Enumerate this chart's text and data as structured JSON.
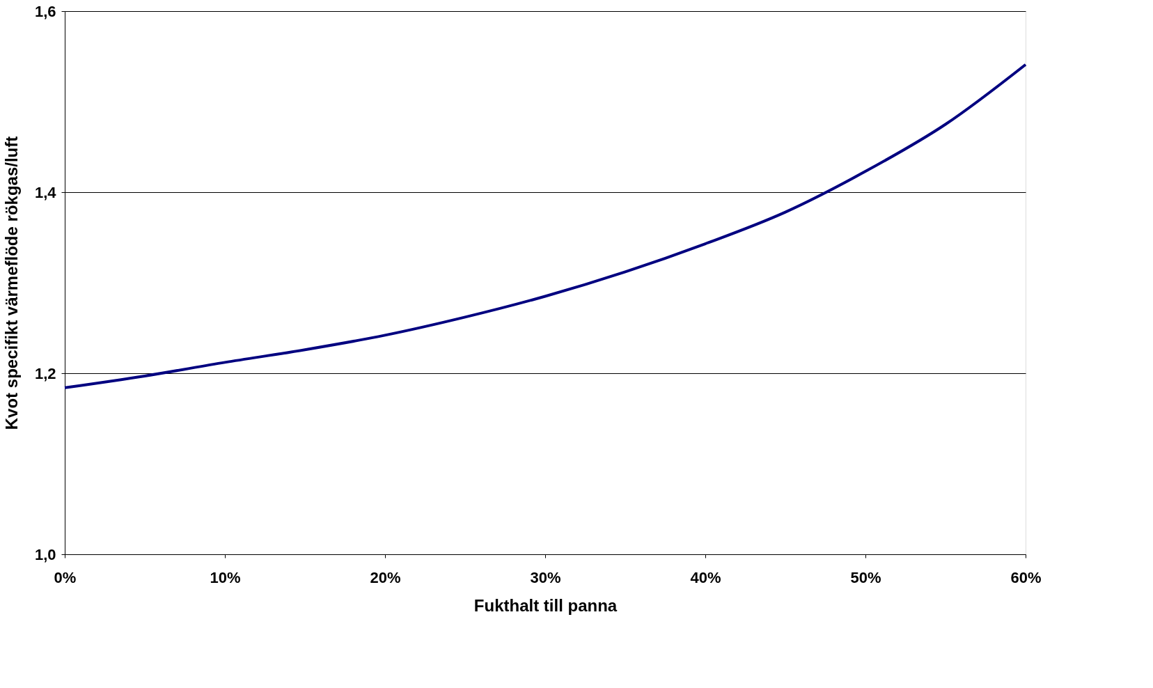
{
  "chart_data": {
    "type": "line",
    "xlabel": "Fukthalt till panna",
    "ylabel": "Kvot specifikt värmeflöde rökgas/luft",
    "x": [
      0,
      5,
      10,
      15,
      20,
      25,
      30,
      35,
      40,
      45,
      50,
      55,
      60
    ],
    "series": [
      {
        "color": "#000080",
        "values": [
          1.184,
          1.197,
          1.212,
          1.226,
          1.242,
          1.262,
          1.285,
          1.312,
          1.343,
          1.378,
          1.423,
          1.475,
          1.541
        ]
      }
    ],
    "xlim": [
      0,
      60
    ],
    "xticks": [
      {
        "value": 0,
        "label": "0%"
      },
      {
        "value": 10,
        "label": "10%"
      },
      {
        "value": 20,
        "label": "20%"
      },
      {
        "value": 30,
        "label": "30%"
      },
      {
        "value": 40,
        "label": "40%"
      },
      {
        "value": 50,
        "label": "50%"
      },
      {
        "value": 60,
        "label": "60%"
      }
    ],
    "ylim": [
      1.0,
      1.6
    ],
    "yticks": [
      {
        "value": 1.0,
        "label": "1,0"
      },
      {
        "value": 1.2,
        "label": "1,2"
      },
      {
        "value": 1.4,
        "label": "1,4"
      },
      {
        "value": 1.6,
        "label": "1,6"
      }
    ],
    "grid": "y",
    "marker": "none",
    "line_style": "solid"
  }
}
